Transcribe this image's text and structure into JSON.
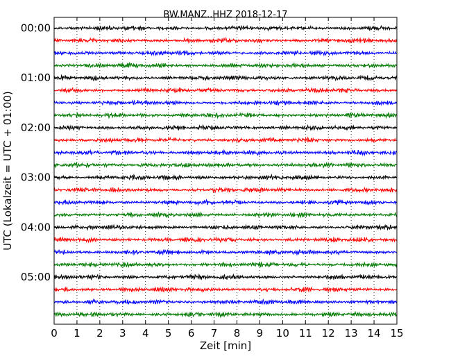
{
  "chart_data": {
    "type": "line",
    "title": "BW.MANZ..HHZ 2018-12-17",
    "xlabel": "Zeit  [min]",
    "ylabel": "UTC (Lokalzeit = UTC + 01:00)",
    "xlim": [
      0,
      15
    ],
    "x_ticks": [
      "0",
      "1",
      "2",
      "3",
      "4",
      "5",
      "6",
      "7",
      "8",
      "9",
      "10",
      "11",
      "12",
      "13",
      "14",
      "15"
    ],
    "y_ticks": [
      "00:00",
      "01:00",
      "02:00",
      "03:00",
      "04:00",
      "05:00"
    ],
    "grid": "vertical dotted",
    "series_colors": [
      "#000000",
      "#ff0000",
      "#0000ff",
      "#007a00"
    ],
    "series_count": 24,
    "series_start_times": [
      "00:00",
      "00:15",
      "00:30",
      "00:45",
      "01:00",
      "01:15",
      "01:30",
      "01:45",
      "02:00",
      "02:15",
      "02:30",
      "02:45",
      "03:00",
      "03:15",
      "03:30",
      "03:45",
      "04:00",
      "04:15",
      "04:30",
      "04:45",
      "05:00",
      "05:15",
      "05:30",
      "05:45"
    ],
    "trace_description": "seismic noise trace, small amplitude oscillation around each row baseline"
  }
}
